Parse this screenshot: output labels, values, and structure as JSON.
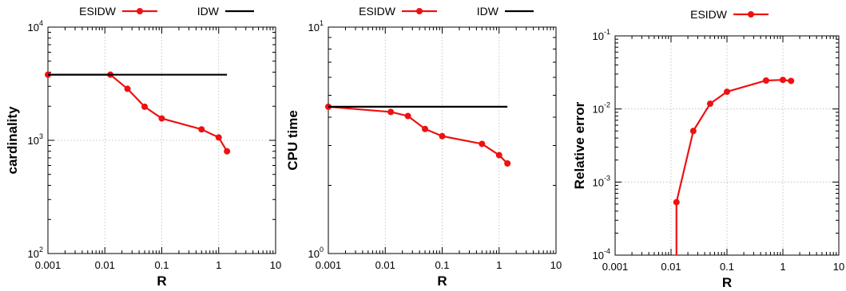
{
  "colors": {
    "esidw": "#ee1111",
    "idw": "#000000"
  },
  "chart_data": [
    {
      "type": "line",
      "xlabel": "R",
      "ylabel": "cardinality",
      "xscale": "log",
      "yscale": "log",
      "xlim": [
        0.001,
        10
      ],
      "ylim": [
        100,
        10000
      ],
      "grid": true,
      "legend_position": "top-center",
      "xticks": [
        {
          "m": "0.001",
          "v": 0.001
        },
        {
          "m": "0.01",
          "v": 0.01
        },
        {
          "m": "0.1",
          "v": 0.1
        },
        {
          "m": "1",
          "v": 1
        },
        {
          "m": "10",
          "v": 10
        }
      ],
      "yticks": [
        {
          "m": "10",
          "e": "2",
          "v": 100
        },
        {
          "m": "10",
          "e": "3",
          "v": 1000
        },
        {
          "m": "10",
          "e": "4",
          "v": 10000
        }
      ],
      "series": [
        {
          "name": "ESIDW",
          "color": "#ee1111",
          "markers": true,
          "points": [
            [
              0.001,
              3800
            ],
            [
              0.0125,
              3800
            ],
            [
              0.025,
              2850
            ],
            [
              0.05,
              1980
            ],
            [
              0.1,
              1560
            ],
            [
              0.5,
              1250
            ],
            [
              1.0,
              1060
            ],
            [
              1.4,
              800
            ]
          ]
        },
        {
          "name": "IDW",
          "color": "#000000",
          "markers": false,
          "points": [
            [
              0.001,
              3800
            ],
            [
              1.4,
              3800
            ]
          ]
        }
      ]
    },
    {
      "type": "line",
      "xlabel": "R",
      "ylabel": "CPU time",
      "xscale": "log",
      "yscale": "log",
      "xlim": [
        0.001,
        10
      ],
      "ylim": [
        1,
        10
      ],
      "grid": true,
      "legend_position": "top-center",
      "xticks": [
        {
          "m": "0.001",
          "v": 0.001
        },
        {
          "m": "0.01",
          "v": 0.01
        },
        {
          "m": "0.1",
          "v": 0.1
        },
        {
          "m": "1",
          "v": 1
        },
        {
          "m": "10",
          "v": 10
        }
      ],
      "yticks": [
        {
          "m": "10",
          "e": "0",
          "v": 1
        },
        {
          "m": "10",
          "e": "1",
          "v": 10
        }
      ],
      "series": [
        {
          "name": "ESIDW",
          "color": "#ee1111",
          "markers": true,
          "points": [
            [
              0.001,
              4.45
            ],
            [
              0.0125,
              4.22
            ],
            [
              0.025,
              4.05
            ],
            [
              0.05,
              3.55
            ],
            [
              0.1,
              3.3
            ],
            [
              0.5,
              3.05
            ],
            [
              1.0,
              2.72
            ],
            [
              1.4,
              2.5
            ]
          ]
        },
        {
          "name": "IDW",
          "color": "#000000",
          "markers": false,
          "points": [
            [
              0.001,
              4.45
            ],
            [
              1.4,
              4.45
            ]
          ]
        }
      ]
    },
    {
      "type": "line",
      "xlabel": "R",
      "ylabel": "Relative error",
      "xscale": "log",
      "yscale": "log",
      "xlim": [
        0.001,
        10
      ],
      "ylim": [
        0.0001,
        0.1
      ],
      "grid": true,
      "legend_position": "top-center",
      "xticks": [
        {
          "m": "0.001",
          "v": 0.001
        },
        {
          "m": "0.01",
          "v": 0.01
        },
        {
          "m": "0.1",
          "v": 0.1
        },
        {
          "m": "1",
          "v": 1
        },
        {
          "m": "10",
          "v": 10
        }
      ],
      "yticks": [
        {
          "m": "10",
          "e": "-4",
          "v": 0.0001
        },
        {
          "m": "10",
          "e": "-3",
          "v": 0.001
        },
        {
          "m": "10",
          "e": "-2",
          "v": 0.01
        },
        {
          "m": "10",
          "e": "-1",
          "v": 0.1
        }
      ],
      "series": [
        {
          "name": "ESIDW",
          "color": "#ee1111",
          "markers": true,
          "points": [
            [
              0.0125,
              0.00053
            ],
            [
              0.025,
              0.005
            ],
            [
              0.05,
              0.0118
            ],
            [
              0.1,
              0.0172
            ],
            [
              0.5,
              0.0245
            ],
            [
              1.0,
              0.025
            ],
            [
              1.4,
              0.0242
            ]
          ],
          "drop_to_axis_from_first": true
        }
      ]
    }
  ]
}
